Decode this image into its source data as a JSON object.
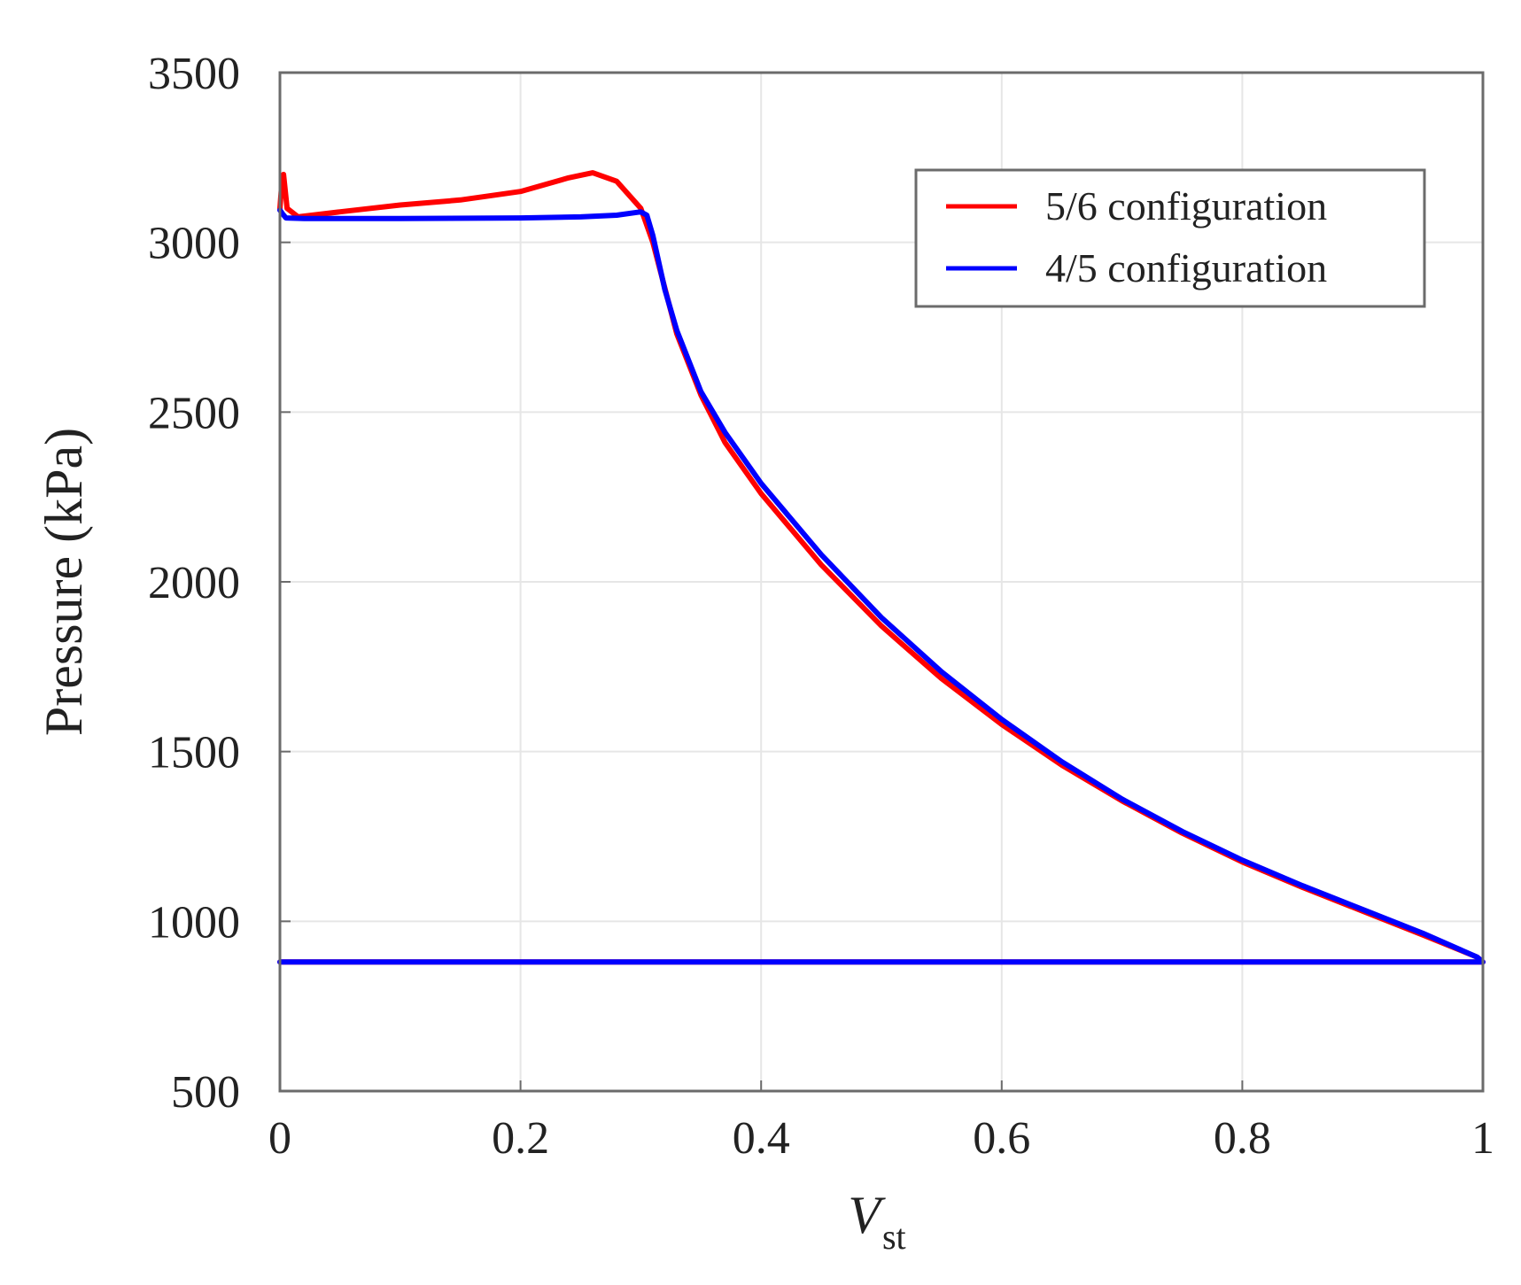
{
  "chart_data": {
    "type": "line",
    "xlabel": "V",
    "xlabel_sub": "st",
    "ylabel": "Pressure  (kPa)",
    "xlim": [
      0,
      1
    ],
    "ylim": [
      500,
      3500
    ],
    "xticks": [
      0,
      0.2,
      0.4,
      0.6,
      0.8,
      1
    ],
    "xtick_labels": [
      "0",
      "0.2",
      "0.4",
      "0.6",
      "0.8",
      "1"
    ],
    "yticks": [
      500,
      1000,
      1500,
      2000,
      2500,
      3000,
      3500
    ],
    "ytick_labels": [
      "500",
      "1000",
      "1500",
      "2000",
      "2500",
      "3000",
      "3500"
    ],
    "grid": true,
    "legend_position": "top-right",
    "series": [
      {
        "name": "5/6 configuration",
        "color": "#ff0000",
        "points": [
          [
            0,
            880
          ],
          [
            1,
            880
          ],
          [
            0.995,
            895
          ],
          [
            0.95,
            960
          ],
          [
            0.9,
            1030
          ],
          [
            0.85,
            1100
          ],
          [
            0.8,
            1175
          ],
          [
            0.75,
            1260
          ],
          [
            0.7,
            1355
          ],
          [
            0.65,
            1460
          ],
          [
            0.6,
            1580
          ],
          [
            0.55,
            1715
          ],
          [
            0.5,
            1870
          ],
          [
            0.45,
            2050
          ],
          [
            0.4,
            2260
          ],
          [
            0.37,
            2410
          ],
          [
            0.35,
            2550
          ],
          [
            0.33,
            2730
          ],
          [
            0.31,
            3000
          ],
          [
            0.3,
            3100
          ],
          [
            0.28,
            3180
          ],
          [
            0.26,
            3205
          ],
          [
            0.24,
            3190
          ],
          [
            0.2,
            3150
          ],
          [
            0.15,
            3125
          ],
          [
            0.1,
            3110
          ],
          [
            0.05,
            3090
          ],
          [
            0.015,
            3075
          ],
          [
            0.006,
            3100
          ],
          [
            0.003,
            3200
          ],
          [
            0.001,
            3150
          ],
          [
            0,
            3100
          ]
        ]
      },
      {
        "name": "4/5 configuration",
        "color": "#0000ff",
        "points": [
          [
            0,
            880
          ],
          [
            1,
            880
          ],
          [
            0.995,
            895
          ],
          [
            0.95,
            965
          ],
          [
            0.9,
            1035
          ],
          [
            0.85,
            1105
          ],
          [
            0.8,
            1180
          ],
          [
            0.75,
            1265
          ],
          [
            0.7,
            1360
          ],
          [
            0.65,
            1470
          ],
          [
            0.6,
            1595
          ],
          [
            0.55,
            1735
          ],
          [
            0.5,
            1895
          ],
          [
            0.45,
            2080
          ],
          [
            0.4,
            2290
          ],
          [
            0.37,
            2440
          ],
          [
            0.35,
            2560
          ],
          [
            0.33,
            2740
          ],
          [
            0.32,
            2860
          ],
          [
            0.31,
            3020
          ],
          [
            0.305,
            3080
          ],
          [
            0.3,
            3090
          ],
          [
            0.28,
            3080
          ],
          [
            0.25,
            3075
          ],
          [
            0.2,
            3072
          ],
          [
            0.1,
            3070
          ],
          [
            0.02,
            3070
          ],
          [
            0.005,
            3072
          ],
          [
            0.002,
            3085
          ],
          [
            0,
            3095
          ]
        ]
      }
    ]
  }
}
